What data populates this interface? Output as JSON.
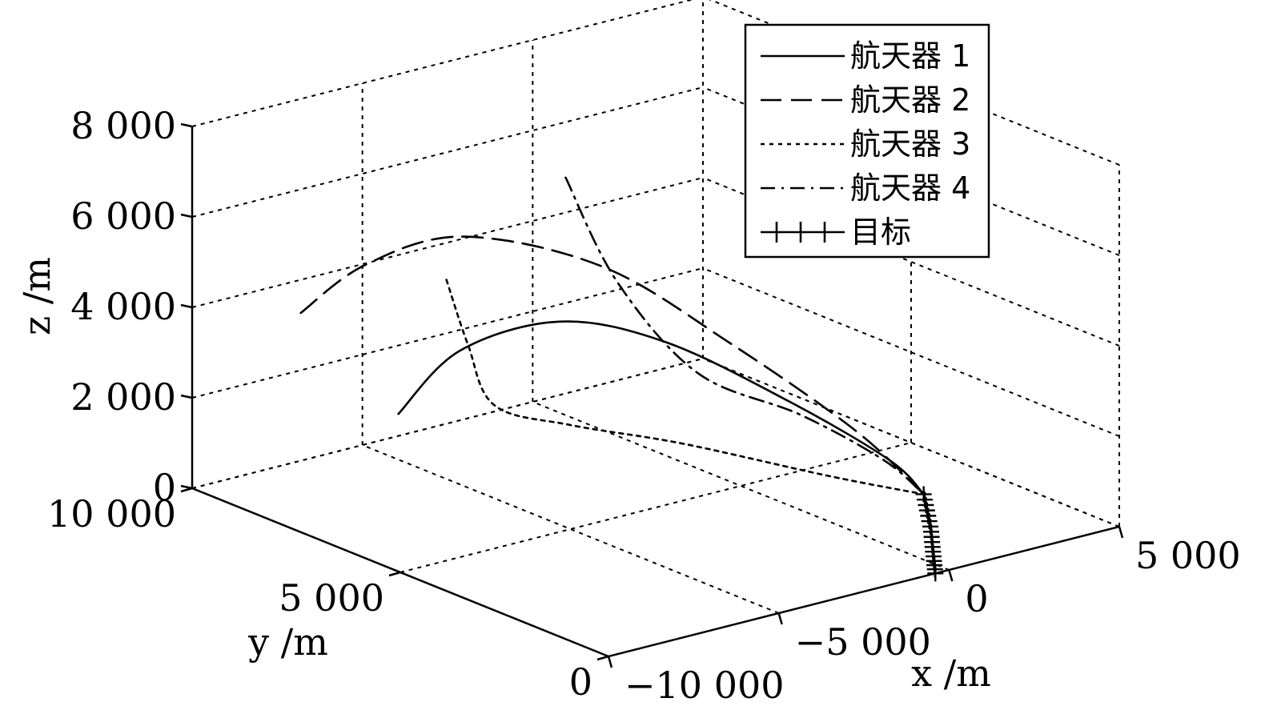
{
  "chart_data": {
    "type": "line",
    "projection": "3d",
    "xlabel": "x /m",
    "ylabel": "y /m",
    "zlabel": "z /m",
    "xlim": [
      -10000,
      5000
    ],
    "ylim": [
      0,
      10000
    ],
    "zlim": [
      0,
      8000
    ],
    "x_ticks": [
      {
        "value": -10000,
        "label": "−10 000"
      },
      {
        "value": -5000,
        "label": "−5 000"
      },
      {
        "value": 0,
        "label": "0"
      },
      {
        "value": 5000,
        "label": "5 000"
      }
    ],
    "y_ticks": [
      {
        "value": 0,
        "label": "0"
      },
      {
        "value": 5000,
        "label": "5 000"
      },
      {
        "value": 10000,
        "label": "10 000"
      }
    ],
    "z_ticks": [
      {
        "value": 0,
        "label": "0"
      },
      {
        "value": 2000,
        "label": "2 000"
      },
      {
        "value": 4000,
        "label": "4 000"
      },
      {
        "value": 6000,
        "label": "6 000"
      },
      {
        "value": 8000,
        "label": "8 000"
      }
    ],
    "grid": true,
    "box": true,
    "legend_position": "top-right",
    "series": [
      {
        "name": "航天器 1",
        "line_style": "solid",
        "x": [
          -7000,
          -5200,
          -3000,
          -1500,
          -200,
          700,
          600
        ],
        "y": [
          7500,
          7500,
          6900,
          5600,
          3700,
          2000,
          1100
        ],
        "z": [
          2000,
          3050,
          3500,
          3250,
          2400,
          1550,
          1150
        ]
      },
      {
        "name": "航天器 2",
        "line_style": "dashed",
        "x": [
          -9500,
          -7600,
          -5000,
          -2600,
          -900,
          300,
          600
        ],
        "y": [
          7800,
          7800,
          7600,
          6200,
          4500,
          2500,
          1100
        ],
        "z": [
          4600,
          5300,
          5500,
          4900,
          3500,
          2100,
          1150
        ]
      },
      {
        "name": "航天器 3",
        "line_style": "dotted",
        "x": [
          -6200,
          -6300,
          -6500,
          -5000,
          -2700,
          -600,
          600
        ],
        "y": [
          7000,
          6400,
          5600,
          5000,
          4200,
          2400,
          1100
        ],
        "z": [
          5000,
          3800,
          2800,
          2300,
          1750,
          1300,
          1150
        ]
      },
      {
        "name": "航天器 4",
        "line_style": "dashdot",
        "x": [
          -500,
          -1800,
          -2000,
          -700,
          400,
          600
        ],
        "y": [
          8800,
          6500,
          4400,
          3000,
          1900,
          1100
        ],
        "z": [
          5500,
          4300,
          3100,
          2450,
          1650,
          1150
        ]
      },
      {
        "name": "目标",
        "line_style": "solid-plus-markers",
        "x": [
          600,
          400,
          200,
          0,
          -200,
          -400
        ],
        "y": [
          1100,
          850,
          600,
          400,
          200,
          0
        ],
        "z": [
          1150,
          900,
          650,
          400,
          180,
          0
        ]
      }
    ]
  }
}
